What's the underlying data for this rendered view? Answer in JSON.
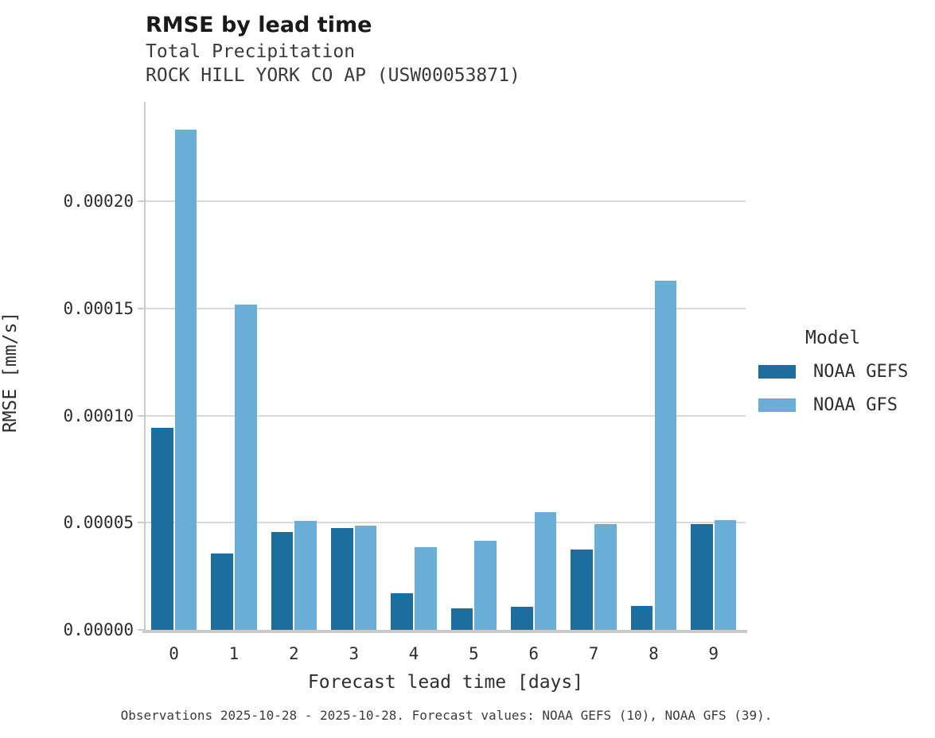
{
  "header": {
    "title": "RMSE by lead time",
    "subtitle_line1": "Total Precipitation",
    "subtitle_line2": "ROCK HILL YORK CO AP (USW00053871)"
  },
  "chart_data": {
    "type": "bar",
    "title": "RMSE by lead time",
    "subtitle": [
      "Total Precipitation",
      "ROCK HILL YORK CO AP (USW00053871)"
    ],
    "xlabel": "Forecast lead time [days]",
    "ylabel": "RMSE [mm/s]",
    "categories": [
      "0",
      "1",
      "2",
      "3",
      "4",
      "5",
      "6",
      "7",
      "8",
      "9"
    ],
    "series": [
      {
        "name": "NOAA GEFS",
        "color": "#1b6e9e",
        "values": [
          9.42e-05,
          3.56e-05,
          4.58e-05,
          4.75e-05,
          1.72e-05,
          1.02e-05,
          1.09e-05,
          3.74e-05,
          1.12e-05,
          4.94e-05
        ]
      },
      {
        "name": "NOAA GFS",
        "color": "#69aed6",
        "values": [
          0.0002335,
          0.000152,
          5.07e-05,
          4.85e-05,
          3.87e-05,
          4.17e-05,
          5.49e-05,
          4.93e-05,
          0.000163,
          5.13e-05
        ]
      }
    ],
    "ylim": [
      0,
      0.0002466
    ],
    "yticks": [
      0,
      5e-05,
      0.0001,
      0.00015,
      0.0002
    ],
    "ytick_labels": [
      "0.00000",
      "0.00005",
      "0.00010",
      "0.00015",
      "0.00020"
    ],
    "grid": "horizontal",
    "legend_position": "right"
  },
  "legend": {
    "title": "Model",
    "items": [
      {
        "label": "NOAA GEFS",
        "color": "#1b6e9e"
      },
      {
        "label": "NOAA GFS",
        "color": "#69aed6"
      }
    ]
  },
  "caption": "Observations 2025-10-28 - 2025-10-28. Forecast values: NOAA GEFS (10), NOAA GFS (39).",
  "colors": {
    "background": "#ffffff",
    "gridline": "#d9d9d9",
    "spine": "#cccccc",
    "title_text": "#1a1a1a",
    "body_text": "#2e2e2e",
    "gefs_bar": "#1b6e9e",
    "gfs_bar": "#69aed6"
  }
}
